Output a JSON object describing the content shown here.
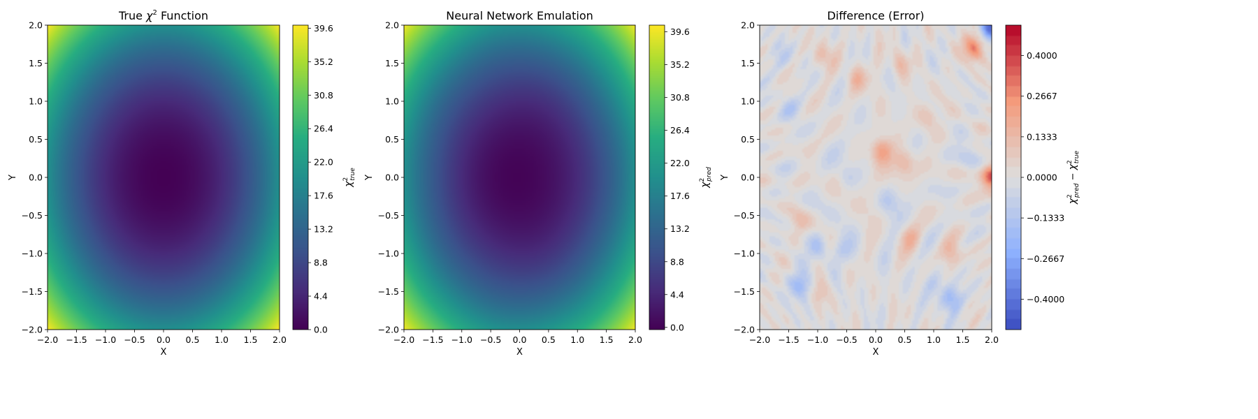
{
  "chart_data": [
    {
      "type": "heatmap",
      "title": "True χ² Function",
      "title_main": "True ",
      "title_sym": "χ",
      "title_sup": "2",
      "title_tail": " Function",
      "xlabel": "X",
      "ylabel": "Y",
      "colorbar_label": {
        "base": "χ",
        "sup": "2",
        "sub": "true"
      },
      "xlim": [
        -2.0,
        2.0
      ],
      "ylim": [
        -2.0,
        2.0
      ],
      "x_ticks": [
        "−2.0",
        "−1.5",
        "−1.0",
        "−0.5",
        "0.0",
        "0.5",
        "1.0",
        "1.5",
        "2.0"
      ],
      "y_ticks": [
        "−2.0",
        "−1.5",
        "−1.0",
        "−0.5",
        "0.0",
        "0.5",
        "1.0",
        "1.5",
        "2.0"
      ],
      "colormap": "viridis",
      "function": "chi2 = 5 * (x^2 + y^2)",
      "value_range": [
        0.0,
        40.0
      ],
      "colorbar_ticks": [
        "0.0",
        "4.4",
        "8.8",
        "13.2",
        "17.6",
        "22.0",
        "26.4",
        "30.8",
        "35.2",
        "39.6"
      ],
      "colorbar_tick_values": [
        0.0,
        4.4,
        8.8,
        13.2,
        17.6,
        22.0,
        26.4,
        30.8,
        35.2,
        39.6
      ]
    },
    {
      "type": "heatmap",
      "title": "Neural Network Emulation",
      "xlabel": "X",
      "ylabel": "Y",
      "colorbar_label": {
        "base": "χ",
        "sup": "2",
        "sub": "pred"
      },
      "xlim": [
        -2.0,
        2.0
      ],
      "ylim": [
        -2.0,
        2.0
      ],
      "x_ticks": [
        "−2.0",
        "−1.5",
        "−1.0",
        "−0.5",
        "0.0",
        "0.5",
        "1.0",
        "1.5",
        "2.0"
      ],
      "y_ticks": [
        "−2.0",
        "−1.5",
        "−1.0",
        "−0.5",
        "0.0",
        "0.5",
        "1.0",
        "1.5",
        "2.0"
      ],
      "colormap": "viridis",
      "function": "chi2_pred ≈ 5 * (x^2 + y^2)",
      "value_range": [
        -0.3,
        40.5
      ],
      "colorbar_ticks": [
        "0.0",
        "4.4",
        "8.8",
        "13.2",
        "17.6",
        "22.0",
        "26.4",
        "30.8",
        "35.2",
        "39.6"
      ],
      "colorbar_tick_values": [
        0.0,
        4.4,
        8.8,
        13.2,
        17.6,
        22.0,
        26.4,
        30.8,
        35.2,
        39.6
      ]
    },
    {
      "type": "heatmap",
      "title": "Difference (Error)",
      "xlabel": "X",
      "ylabel": "Y",
      "colorbar_label": {
        "a": "χ",
        "a_sup": "2",
        "a_sub": "pred",
        "op": " − ",
        "b": "χ",
        "b_sup": "2",
        "b_sub": "true"
      },
      "xlim": [
        -2.0,
        2.0
      ],
      "ylim": [
        -2.0,
        2.0
      ],
      "x_ticks": [
        "−2.0",
        "−1.5",
        "−1.0",
        "−0.5",
        "0.0",
        "0.5",
        "1.0",
        "1.5",
        "2.0"
      ],
      "y_ticks": [
        "−2.0",
        "−1.5",
        "−1.0",
        "−0.5",
        "0.0",
        "0.5",
        "1.0",
        "1.5",
        "2.0"
      ],
      "colormap": "coolwarm",
      "value_range": [
        -0.5,
        0.5
      ],
      "colorbar_levels": 30,
      "colorbar_ticks": [
        "−0.4000",
        "−0.2667",
        "−0.1333",
        "0.0000",
        "0.1333",
        "0.2667",
        "0.4000"
      ],
      "colorbar_tick_values": [
        -0.4,
        -0.2667,
        -0.1333,
        0.0,
        0.1333,
        0.2667,
        0.4
      ],
      "error_blobs": [
        {
          "x": 1.7,
          "y": 1.7,
          "v": 0.3
        },
        {
          "x": 2.0,
          "y": 0.0,
          "v": 0.38
        },
        {
          "x": 2.0,
          "y": 2.0,
          "v": -0.45
        },
        {
          "x": 0.1,
          "y": 0.35,
          "v": 0.2
        },
        {
          "x": -1.0,
          "y": -1.5,
          "v": 0.2
        },
        {
          "x": -1.1,
          "y": -1.5,
          "v": -0.15
        },
        {
          "x": 1.3,
          "y": -1.6,
          "v": -0.22
        },
        {
          "x": -1.3,
          "y": -1.4,
          "v": -0.18
        },
        {
          "x": 1.3,
          "y": -1.0,
          "v": 0.15
        },
        {
          "x": -1.0,
          "y": -0.9,
          "v": -0.12
        },
        {
          "x": -0.6,
          "y": -0.95,
          "v": -0.12
        },
        {
          "x": 0.5,
          "y": 0.2,
          "v": 0.14
        },
        {
          "x": -0.3,
          "y": 1.3,
          "v": 0.14
        },
        {
          "x": -0.9,
          "y": 1.6,
          "v": 0.12
        },
        {
          "x": 0.9,
          "y": 0.8,
          "v": 0.12
        },
        {
          "x": 0.6,
          "y": -0.8,
          "v": 0.13
        },
        {
          "x": -1.5,
          "y": 0.9,
          "v": -0.1
        },
        {
          "x": -0.5,
          "y": 0.0,
          "v": -0.09
        },
        {
          "x": 0.2,
          "y": -0.3,
          "v": -0.1
        },
        {
          "x": 1.6,
          "y": 0.3,
          "v": -0.09
        },
        {
          "x": -1.3,
          "y": -0.6,
          "v": 0.1
        },
        {
          "x": 1.0,
          "y": -1.4,
          "v": -0.1
        },
        {
          "x": -1.6,
          "y": 1.6,
          "v": -0.08
        },
        {
          "x": 0.4,
          "y": 1.5,
          "v": 0.11
        }
      ]
    }
  ]
}
